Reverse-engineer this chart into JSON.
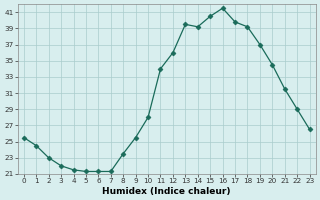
{
  "x": [
    0,
    1,
    2,
    3,
    4,
    5,
    6,
    7,
    8,
    9,
    10,
    11,
    12,
    13,
    14,
    15,
    16,
    17,
    18,
    19,
    20,
    21,
    22,
    23
  ],
  "y": [
    25.5,
    24.5,
    23.0,
    22.0,
    21.5,
    21.3,
    21.3,
    21.3,
    23.5,
    25.5,
    28.0,
    34.0,
    36.0,
    39.5,
    39.2,
    40.5,
    41.5,
    39.8,
    39.2,
    37.0,
    34.5,
    31.5,
    29.0,
    26.5
  ],
  "line_color": "#1a6b5a",
  "marker": "D",
  "marker_size": 2.5,
  "bg_color": "#d8eeee",
  "grid_color": "#aacccc",
  "xlabel": "Humidex (Indice chaleur)",
  "xlim": [
    -0.5,
    23.5
  ],
  "ylim": [
    21,
    42
  ],
  "yticks": [
    21,
    23,
    25,
    27,
    29,
    31,
    33,
    35,
    37,
    39,
    41
  ],
  "xticks": [
    0,
    1,
    2,
    3,
    4,
    5,
    6,
    7,
    8,
    9,
    10,
    11,
    12,
    13,
    14,
    15,
    16,
    17,
    18,
    19,
    20,
    21,
    22,
    23
  ]
}
